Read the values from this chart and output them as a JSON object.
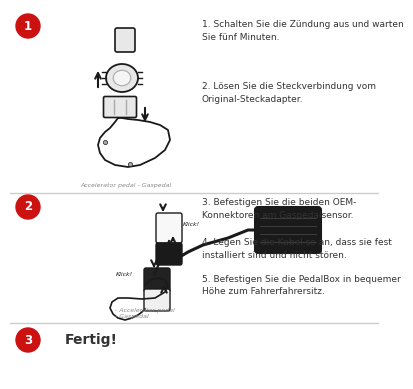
{
  "bg_color": "#ffffff",
  "circle_color": "#cc1111",
  "circle_text_color": "#ffffff",
  "step1_label": "1",
  "step2_label": "2",
  "step3_label": "3",
  "text1a": "1. Schalten Sie die Zündung aus und warten\nSie fünf Minuten.",
  "text1b": "2. Lösen Sie die Steckverbindung vom\nOriginal-Steckadapter.",
  "text2a": "3. Befestigen Sie die beiden OEM-\nKonnektoren am Gaspedalsensor.",
  "text2b": "4. Legen Sie die Kabel so an, dass sie fest\ninstalliert sind und nicht stören.",
  "text2c": "5. Befestigen Sie die PedalBox in bequemer\nHöhe zum Fahrerfahrersitz.",
  "text3": "Fertig!",
  "caption1": "Accelerator pedal - Gaspedal",
  "caption2": "- Accelerator pedal\n- Gaspedal",
  "divider_color": "#cccccc",
  "text_color": "#333333",
  "dark_color": "#1a1a1a",
  "gray_color": "#888888",
  "light_gray": "#e8e8e8",
  "mid_gray": "#aaaaaa"
}
